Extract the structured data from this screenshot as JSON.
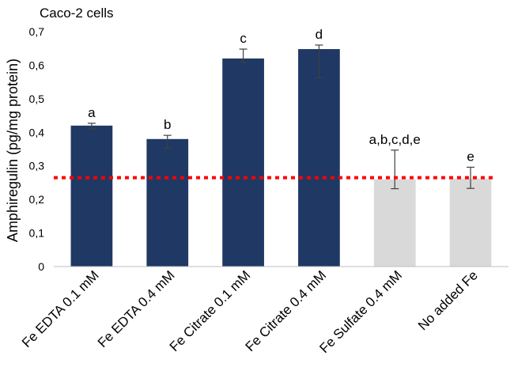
{
  "chart_data": {
    "type": "bar",
    "title": "Caco-2 cells",
    "xlabel": "",
    "ylabel": "Amphiregulin (pg/mg protein)",
    "ylim": [
      0,
      0.7
    ],
    "yticks": [
      "0",
      "0,1",
      "0,2",
      "0,3",
      "0,4",
      "0,5",
      "0,6",
      "0,7"
    ],
    "categories": [
      "Fe EDTA 0.1 mM",
      "Fe EDTA 0.4 mM",
      "Fe Citrate 0.1 mM",
      "Fe Citrate 0.4 mM",
      "Fe Sulfate 0.4 mM",
      "No added Fe"
    ],
    "values": [
      0.42,
      0.38,
      0.62,
      0.648,
      0.26,
      0.262
    ],
    "error_low": [
      0.41,
      0.352,
      0.608,
      0.562,
      0.232,
      0.233
    ],
    "error_high": [
      0.427,
      0.391,
      0.648,
      0.66,
      0.347,
      0.296
    ],
    "significance_labels": [
      "a",
      "b",
      "c",
      "d",
      "a,b,c,d,e",
      "e"
    ],
    "reference_line": {
      "value": 0.265,
      "style": "dotted"
    },
    "colors": {
      "treated": "#1f3864",
      "control": "#d9d9d9",
      "reference": "#ff0000",
      "axis": "#bfbfbf",
      "error": "#404040"
    },
    "bar_color_groups": [
      "treated",
      "treated",
      "treated",
      "treated",
      "control",
      "control"
    ]
  }
}
